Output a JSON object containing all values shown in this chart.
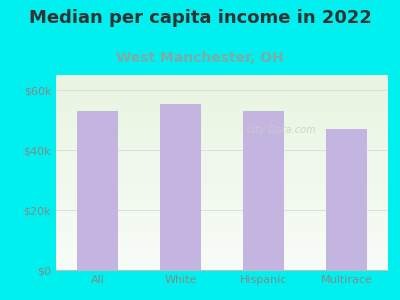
{
  "title": "Median per capita income in 2022",
  "subtitle": "West Manchester, OH",
  "categories": [
    "All",
    "White",
    "Hispanic",
    "Multirace"
  ],
  "values": [
    53000,
    55500,
    53000,
    47000
  ],
  "bar_color": "#c4b4e0",
  "title_fontsize": 13,
  "title_color": "#333333",
  "subtitle_fontsize": 10,
  "subtitle_color": "#7aada8",
  "background_color": "#00f0f0",
  "chart_bg_topleft": "#e8f5e0",
  "chart_bg_bottomright": "#f8f8f8",
  "ylim": [
    0,
    65000
  ],
  "yticks": [
    0,
    20000,
    40000,
    60000
  ],
  "ytick_labels": [
    "$0",
    "$20k",
    "$40k",
    "$60k"
  ],
  "tick_color": "#888888",
  "grid_color": "#dddddd",
  "watermark": "City-Data.com",
  "watermark_color": "#cccccc"
}
